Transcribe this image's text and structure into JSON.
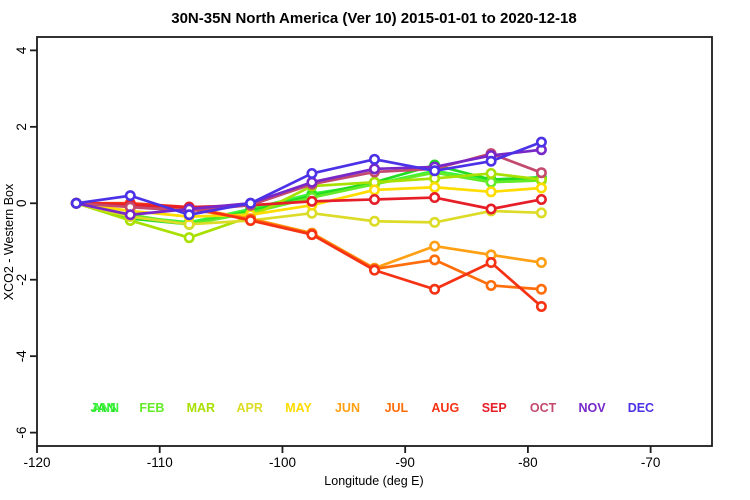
{
  "chart_data": {
    "type": "line",
    "title": "30N-35N North America (Ver 10)   2015-01-01 to 2020-12-18",
    "xlabel": "Longitude (deg E)",
    "ylabel": "XCO2 - Western Box",
    "xlim": [
      -120,
      -65
    ],
    "ylim": [
      -6,
      4
    ],
    "xticks": [
      -120,
      -110,
      -100,
      -90,
      -80,
      -70
    ],
    "yticks": [
      4,
      2,
      0,
      -2,
      -4,
      -6
    ],
    "grid": false,
    "marker": "open-circle",
    "legend_position": "bottom-inside",
    "x": [
      -116.8,
      -112.4,
      -107.6,
      -102.6,
      -97.6,
      -92.5,
      -87.6,
      -83.0,
      -78.9
    ],
    "series": [
      {
        "name": "ANN",
        "color": "#3cf53c",
        "legend_slot": 0,
        "values": [
          0,
          -0.35,
          -0.5,
          -0.15,
          0.25,
          0.5,
          0.85,
          0.6,
          0.65
        ]
      },
      {
        "name": "JAN",
        "color": "#21dc21",
        "legend_slot": 0,
        "values": [
          0,
          -0.4,
          -0.55,
          -0.2,
          0.2,
          0.55,
          1.0,
          0.62,
          0.68
        ]
      },
      {
        "name": "FEB",
        "color": "#64eb28",
        "legend_slot": 1,
        "values": [
          0,
          -0.3,
          -0.55,
          -0.25,
          0.15,
          0.5,
          0.8,
          0.55,
          0.6
        ]
      },
      {
        "name": "MAR",
        "color": "#a8e000",
        "legend_slot": 2,
        "values": [
          0,
          -0.45,
          -0.9,
          -0.35,
          0.45,
          0.55,
          0.65,
          0.78,
          0.62
        ]
      },
      {
        "name": "APR",
        "color": "#dcdc28",
        "legend_slot": 3,
        "values": [
          0,
          -0.35,
          -0.55,
          -0.45,
          -0.26,
          -0.47,
          -0.5,
          -0.2,
          -0.25
        ]
      },
      {
        "name": "MAY",
        "color": "#ffdc00",
        "legend_slot": 4,
        "values": [
          0,
          -0.2,
          -0.35,
          -0.3,
          -0.05,
          0.35,
          0.42,
          0.3,
          0.4
        ]
      },
      {
        "name": "JUN",
        "color": "#ffa014",
        "legend_slot": 5,
        "values": [
          0,
          -0.05,
          -0.12,
          -0.4,
          -0.78,
          -1.7,
          -1.12,
          -1.35,
          -1.55
        ]
      },
      {
        "name": "JUL",
        "color": "#ff6e0a",
        "legend_slot": 6,
        "values": [
          0,
          -0.05,
          -0.15,
          -0.42,
          -0.8,
          -1.72,
          -1.48,
          -2.15,
          -2.25
        ]
      },
      {
        "name": "AUG",
        "color": "#f53214",
        "legend_slot": 7,
        "values": [
          0,
          0,
          -0.1,
          -0.45,
          -0.82,
          -1.75,
          -2.25,
          -1.55,
          -2.7
        ]
      },
      {
        "name": "SEP",
        "color": "#e61e28",
        "legend_slot": 8,
        "values": [
          0,
          -0.05,
          -0.1,
          -0.05,
          0.05,
          0.1,
          0.15,
          -0.15,
          0.1
        ]
      },
      {
        "name": "OCT",
        "color": "#c34a6e",
        "legend_slot": 9,
        "values": [
          0,
          -0.1,
          -0.2,
          -0.05,
          0.5,
          0.82,
          0.9,
          1.3,
          0.8
        ]
      },
      {
        "name": "NOV",
        "color": "#7828c8",
        "legend_slot": 10,
        "values": [
          0,
          -0.3,
          -0.15,
          0.0,
          0.55,
          0.9,
          0.95,
          1.25,
          1.4
        ]
      },
      {
        "name": "DEC",
        "color": "#4b32e6",
        "legend_slot": 11,
        "values": [
          0,
          0.2,
          -0.3,
          0.0,
          0.78,
          1.15,
          0.85,
          1.1,
          1.6
        ]
      }
    ]
  }
}
